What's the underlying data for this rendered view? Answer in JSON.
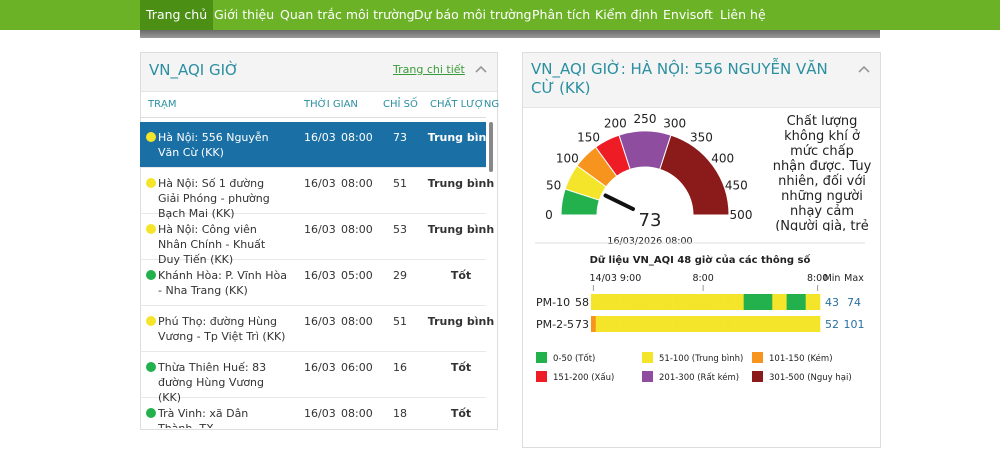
{
  "nav": {
    "items": [
      "Trang chủ",
      "Giới thiệu",
      "Quan trắc môi trường",
      "Dự báo môi trường",
      "Phân tích",
      "Kiểm định",
      "Envisoft",
      "Liên hệ"
    ],
    "active": 0
  },
  "left_panel": {
    "title": "VN_AQI GIỜ",
    "link": "Trang chi tiết",
    "columns": [
      "TRẠM",
      "THỜI GIAN",
      "CHỈ SỐ",
      "CHẤT LƯỢNG"
    ],
    "selected_row": 0,
    "rows": [
      {
        "station": "Hà Nội: 556 Nguyễn Văn Cừ (KK)",
        "date": "16/03",
        "time": "08:00",
        "index": 73,
        "quality": "Trung bình",
        "color": "#f5e52a"
      },
      {
        "station": "Hà Nội: Số 1 đường Giải Phóng - phường Bạch Mai (KK)",
        "date": "16/03",
        "time": "08:00",
        "index": 51,
        "quality": "Trung bình",
        "color": "#f5e52a"
      },
      {
        "station": "Hà Nội: Công viên Nhân Chính - Khuất Duy Tiến (KK)",
        "date": "16/03",
        "time": "08:00",
        "index": 53,
        "quality": "Trung bình",
        "color": "#f5e52a"
      },
      {
        "station": "Khánh Hòa: P. Vĩnh Hòa - Nha Trang (KK)",
        "date": "16/03",
        "time": "05:00",
        "index": 29,
        "quality": "Tốt",
        "color": "#22b14c"
      },
      {
        "station": "Phú Thọ: đường Hùng Vương - Tp Việt Trì (KK)",
        "date": "16/03",
        "time": "08:00",
        "index": 51,
        "quality": "Trung bình",
        "color": "#f5e52a"
      },
      {
        "station": "Thừa Thiên Huế: 83 đường Hùng Vương (KK)",
        "date": "16/03",
        "time": "06:00",
        "index": 16,
        "quality": "Tốt",
        "color": "#22b14c"
      },
      {
        "station": "Trà Vinh: xã Dân Thành, TX",
        "date": "16/03",
        "time": "08:00",
        "index": 18,
        "quality": "Tốt",
        "color": "#22b14c"
      }
    ]
  },
  "right_panel": {
    "title": "VN_AQI GIỜ: HÀ NỘI: 556 NGUYỄN VĂN CỪ (KK)",
    "description": "Chất lượng không khí ở mức chấp nhận được. Tuy nhiên, đối với những người nhạy cảm (Người già, trẻ em, người mắc các bệnh hô hấp, tim mạch…) có thể chịu những tác động nhất định tới sức khỏe.",
    "gauge": {
      "value": 73,
      "timestamp": "16/03/2026 08:00",
      "lim": [
        0,
        500
      ],
      "ticks": [
        0,
        50,
        100,
        150,
        200,
        250,
        300,
        350,
        400,
        450,
        500
      ],
      "bands": [
        {
          "from": 0,
          "to": 50,
          "color": "#22b14c"
        },
        {
          "from": 50,
          "to": 100,
          "color": "#f5e52a"
        },
        {
          "from": 100,
          "to": 150,
          "color": "#f7941d"
        },
        {
          "from": 150,
          "to": 200,
          "color": "#ee1c25"
        },
        {
          "from": 200,
          "to": 300,
          "color": "#8e4d9e"
        },
        {
          "from": 300,
          "to": 500,
          "color": "#8b1a1a"
        }
      ]
    },
    "hourly": {
      "title": "Dữ liệu VN_AQI 48 giờ của các thông số",
      "x_ticks": [
        {
          "value": 0,
          "label": "14/03 9:00"
        },
        {
          "value": 23,
          "label": "8:00"
        },
        {
          "value": 47,
          "label": "8:00"
        }
      ],
      "min_header": "Min",
      "max_header": "Max",
      "series": [
        {
          "name": "PM-10",
          "current": 58,
          "min": 43,
          "max": 74,
          "values": [
            60,
            62,
            65,
            67,
            70,
            72,
            74,
            71,
            68,
            66,
            64,
            63,
            61,
            60,
            59,
            58,
            57,
            56,
            55,
            56,
            58,
            60,
            62,
            63,
            61,
            59,
            57,
            55,
            54,
            53,
            52,
            51,
            48,
            46,
            45,
            44,
            47,
            49,
            52,
            54,
            51,
            47,
            45,
            43,
            48,
            52,
            55,
            58
          ]
        },
        {
          "name": "PM-2-5",
          "current": 73,
          "min": 52,
          "max": 101,
          "values": [
            101,
            95,
            88,
            82,
            78,
            75,
            72,
            70,
            68,
            66,
            65,
            64,
            63,
            62,
            61,
            60,
            59,
            58,
            57,
            56,
            55,
            54,
            53,
            52,
            54,
            56,
            58,
            60,
            61,
            62,
            63,
            64,
            62,
            60,
            58,
            56,
            55,
            54,
            53,
            52,
            54,
            56,
            58,
            62,
            65,
            68,
            70,
            73
          ]
        }
      ]
    },
    "legend": [
      {
        "label": "0-50 (Tốt)",
        "color": "#22b14c"
      },
      {
        "label": "51-100 (Trung bình)",
        "color": "#f5e52a"
      },
      {
        "label": "101-150 (Kém)",
        "color": "#f7941d"
      },
      {
        "label": "151-200 (Xấu)",
        "color": "#ee1c25"
      },
      {
        "label": "201-300 (Rất kém)",
        "color": "#8e4d9e"
      },
      {
        "label": "301-500 (Nguy hại)",
        "color": "#8b1a1a"
      }
    ]
  }
}
